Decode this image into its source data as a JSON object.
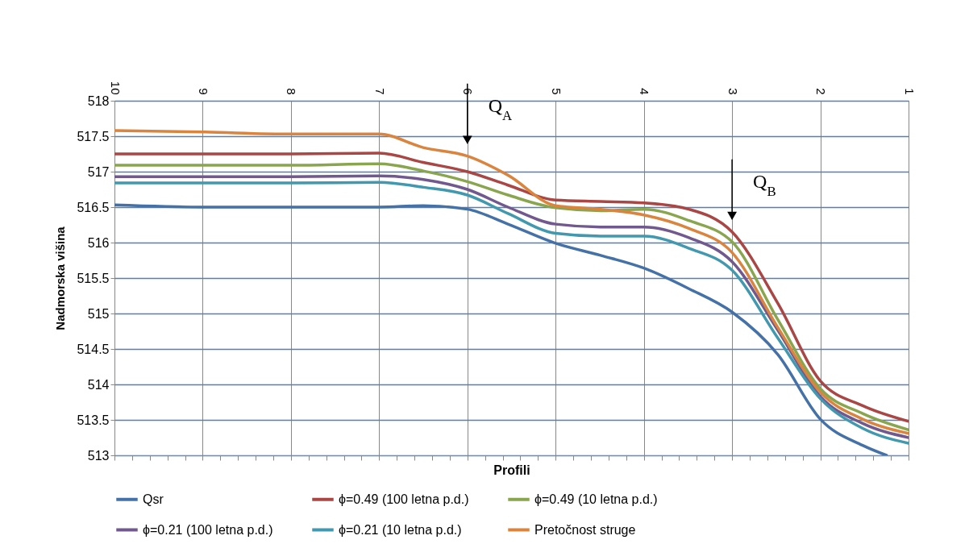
{
  "chart_data": {
    "type": "line",
    "xlabel": "Profili",
    "ylabel": "Nadmorska višina",
    "x": [
      10,
      9,
      8,
      7,
      6.5,
      6,
      5.54,
      5,
      4.49,
      4,
      3.49,
      3,
      2.48,
      2,
      1.52,
      1
    ],
    "series": [
      {
        "name": "Qsr",
        "color": "#4472a8",
        "x": [
          10,
          9,
          8,
          7,
          6.5,
          6,
          5.54,
          5,
          4.49,
          4,
          3.49,
          3,
          2.48,
          2,
          1.52,
          1.25
        ],
        "values": [
          516.53,
          516.5,
          516.5,
          516.5,
          516.52,
          516.47,
          516.26,
          515.99,
          515.82,
          515.64,
          515.35,
          515.02,
          514.42,
          513.51,
          513.14,
          513.0
        ]
      },
      {
        "name": "ϕ=0.49 (100 letna p.d.)",
        "color": "#aa4643",
        "values": [
          517.25,
          517.25,
          517.25,
          517.26,
          517.13,
          517.0,
          516.81,
          516.6,
          516.58,
          516.56,
          516.47,
          516.15,
          515.14,
          514.05,
          513.7,
          513.48
        ]
      },
      {
        "name": "ϕ=0.49 (10 letna p.d.)",
        "color": "#89a54e",
        "values": [
          517.09,
          517.09,
          517.09,
          517.11,
          517.01,
          516.86,
          516.67,
          516.49,
          516.45,
          516.47,
          516.31,
          516.01,
          514.91,
          513.94,
          513.59,
          513.36
        ]
      },
      {
        "name": "ϕ=0.21 (100 letna p.d.)",
        "color": "#71588f",
        "values": [
          516.93,
          516.93,
          516.93,
          516.94,
          516.89,
          516.75,
          516.5,
          516.26,
          516.22,
          516.22,
          516.07,
          515.73,
          514.76,
          513.83,
          513.45,
          513.25
        ]
      },
      {
        "name": "ϕ=0.21 (10 letna p.d.)",
        "color": "#4198af",
        "values": [
          516.84,
          516.84,
          516.84,
          516.85,
          516.78,
          516.67,
          516.41,
          516.13,
          516.09,
          516.09,
          515.92,
          515.61,
          514.65,
          513.8,
          513.38,
          513.17
        ]
      },
      {
        "name": "Pretočnost struge",
        "color": "#db843d",
        "values": [
          517.58,
          517.56,
          517.53,
          517.53,
          517.34,
          517.22,
          516.95,
          516.52,
          516.47,
          516.39,
          516.2,
          515.86,
          514.8,
          513.89,
          513.51,
          513.31
        ]
      }
    ],
    "xlim": [
      10,
      1
    ],
    "xticks": [
      10,
      9,
      8,
      7,
      6,
      5,
      4,
      3,
      2,
      1
    ],
    "ylim": [
      513,
      518
    ],
    "yticks": [
      513,
      513.5,
      514,
      514.5,
      515,
      515.5,
      516,
      516.5,
      517,
      517.5,
      518
    ],
    "grid": true,
    "legend": "bottom",
    "line_style": "solid",
    "annotations": [
      {
        "text": "Q$_{A}$",
        "x": 6,
        "y": 517.22
      },
      {
        "text": "Q$_{B}$",
        "x": 3,
        "y": 516.15
      }
    ]
  }
}
